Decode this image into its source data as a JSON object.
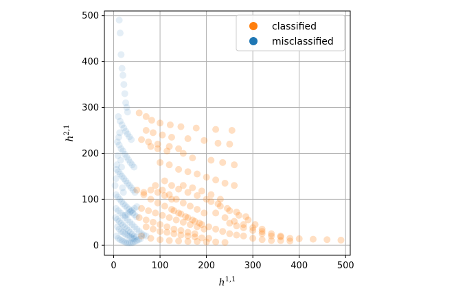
{
  "chart_data": {
    "type": "scatter",
    "title": "",
    "xlabel": "h",
    "xlabel_sup": "1,1",
    "ylabel": "h",
    "ylabel_sup": "2,1",
    "xlim": [
      -20,
      510
    ],
    "ylim": [
      -22,
      510
    ],
    "xticks": [
      0,
      100,
      200,
      300,
      400,
      500
    ],
    "yticks": [
      0,
      100,
      200,
      300,
      400,
      500
    ],
    "grid": true,
    "legend_position": "top-right",
    "series": [
      {
        "name": "classified",
        "color": "#ff7f0e",
        "opacity": 0.25,
        "points": [
          [
            55,
            288
          ],
          [
            70,
            280
          ],
          [
            82,
            272
          ],
          [
            100,
            266
          ],
          [
            122,
            262
          ],
          [
            145,
            258
          ],
          [
            178,
            255
          ],
          [
            220,
            252
          ],
          [
            255,
            250
          ],
          [
            70,
            250
          ],
          [
            85,
            245
          ],
          [
            105,
            240
          ],
          [
            125,
            235
          ],
          [
            160,
            232
          ],
          [
            195,
            228
          ],
          [
            225,
            222
          ],
          [
            250,
            220
          ],
          [
            80,
            215
          ],
          [
            95,
            210
          ],
          [
            115,
            205
          ],
          [
            150,
            200
          ],
          [
            170,
            190
          ],
          [
            210,
            185
          ],
          [
            235,
            180
          ],
          [
            260,
            175
          ],
          [
            60,
            230
          ],
          [
            75,
            225
          ],
          [
            95,
            220
          ],
          [
            120,
            215
          ],
          [
            140,
            210
          ],
          [
            100,
            180
          ],
          [
            120,
            175
          ],
          [
            140,
            165
          ],
          [
            160,
            160
          ],
          [
            180,
            155
          ],
          [
            200,
            148
          ],
          [
            220,
            142
          ],
          [
            240,
            135
          ],
          [
            260,
            130
          ],
          [
            110,
            140
          ],
          [
            125,
            130
          ],
          [
            140,
            122
          ],
          [
            160,
            115
          ],
          [
            180,
            108
          ],
          [
            200,
            100
          ],
          [
            225,
            90
          ],
          [
            245,
            80
          ],
          [
            265,
            72
          ],
          [
            285,
            62
          ],
          [
            210,
            95
          ],
          [
            230,
            85
          ],
          [
            250,
            75
          ],
          [
            270,
            65
          ],
          [
            290,
            55
          ],
          [
            305,
            45
          ],
          [
            320,
            35
          ],
          [
            220,
            70
          ],
          [
            240,
            60
          ],
          [
            260,
            52
          ],
          [
            280,
            45
          ],
          [
            300,
            38
          ],
          [
            320,
            30
          ],
          [
            340,
            25
          ],
          [
            360,
            20
          ],
          [
            250,
            48
          ],
          [
            265,
            42
          ],
          [
            280,
            38
          ],
          [
            300,
            32
          ],
          [
            320,
            25
          ],
          [
            340,
            20
          ],
          [
            360,
            18
          ],
          [
            380,
            15
          ],
          [
            400,
            14
          ],
          [
            430,
            13
          ],
          [
            460,
            12
          ],
          [
            490,
            11
          ],
          [
            60,
            80
          ],
          [
            75,
            75
          ],
          [
            90,
            70
          ],
          [
            105,
            65
          ],
          [
            120,
            60
          ],
          [
            135,
            55
          ],
          [
            150,
            50
          ],
          [
            165,
            45
          ],
          [
            180,
            40
          ],
          [
            195,
            35
          ],
          [
            70,
            40
          ],
          [
            85,
            35
          ],
          [
            100,
            30
          ],
          [
            115,
            28
          ],
          [
            130,
            25
          ],
          [
            145,
            22
          ],
          [
            160,
            20
          ],
          [
            175,
            18
          ],
          [
            190,
            16
          ],
          [
            205,
            15
          ],
          [
            60,
            20
          ],
          [
            80,
            15
          ],
          [
            100,
            12
          ],
          [
            120,
            10
          ],
          [
            140,
            9
          ],
          [
            160,
            8
          ],
          [
            180,
            8
          ],
          [
            200,
            7
          ],
          [
            220,
            7
          ],
          [
            240,
            6
          ],
          [
            65,
            110
          ],
          [
            80,
            100
          ],
          [
            95,
            92
          ],
          [
            110,
            85
          ],
          [
            125,
            78
          ],
          [
            140,
            70
          ],
          [
            155,
            62
          ],
          [
            170,
            55
          ],
          [
            185,
            48
          ],
          [
            90,
            130
          ],
          [
            105,
            120
          ],
          [
            120,
            110
          ],
          [
            135,
            100
          ],
          [
            150,
            92
          ],
          [
            165,
            85
          ],
          [
            180,
            78
          ],
          [
            195,
            70
          ],
          [
            55,
            60
          ],
          [
            70,
            55
          ],
          [
            85,
            50
          ],
          [
            100,
            45
          ],
          [
            115,
            40
          ],
          [
            130,
            35
          ],
          [
            145,
            32
          ],
          [
            160,
            28
          ],
          [
            175,
            25
          ],
          [
            50,
            120
          ],
          [
            65,
            115
          ],
          [
            80,
            120
          ],
          [
            95,
            115
          ],
          [
            110,
            108
          ],
          [
            125,
            100
          ],
          [
            150,
            130
          ],
          [
            170,
            125
          ],
          [
            190,
            118
          ],
          [
            210,
            110
          ],
          [
            230,
            100
          ],
          [
            130,
            75
          ],
          [
            145,
            68
          ],
          [
            160,
            60
          ],
          [
            175,
            52
          ],
          [
            190,
            45
          ],
          [
            205,
            40
          ],
          [
            220,
            35
          ],
          [
            235,
            30
          ],
          [
            250,
            25
          ],
          [
            265,
            22
          ],
          [
            280,
            20
          ],
          [
            300,
            15
          ],
          [
            320,
            12
          ],
          [
            340,
            10
          ],
          [
            360,
            10
          ],
          [
            380,
            9
          ]
        ]
      },
      {
        "name": "misclassified",
        "color": "#1f77b4",
        "opacity": 0.12,
        "points": [
          [
            12,
            490
          ],
          [
            14,
            462
          ],
          [
            16,
            415
          ],
          [
            18,
            385
          ],
          [
            20,
            370
          ],
          [
            22,
            350
          ],
          [
            24,
            330
          ],
          [
            26,
            310
          ],
          [
            28,
            300
          ],
          [
            30,
            290
          ],
          [
            10,
            280
          ],
          [
            14,
            270
          ],
          [
            18,
            262
          ],
          [
            22,
            255
          ],
          [
            26,
            248
          ],
          [
            30,
            242
          ],
          [
            34,
            236
          ],
          [
            38,
            230
          ],
          [
            8,
            225
          ],
          [
            12,
            218
          ],
          [
            16,
            210
          ],
          [
            20,
            205
          ],
          [
            24,
            198
          ],
          [
            28,
            192
          ],
          [
            32,
            186
          ],
          [
            36,
            180
          ],
          [
            40,
            175
          ],
          [
            44,
            170
          ],
          [
            6,
            165
          ],
          [
            10,
            160
          ],
          [
            14,
            155
          ],
          [
            18,
            150
          ],
          [
            22,
            145
          ],
          [
            26,
            140
          ],
          [
            30,
            135
          ],
          [
            34,
            130
          ],
          [
            38,
            125
          ],
          [
            42,
            120
          ],
          [
            46,
            115
          ],
          [
            5,
            110
          ],
          [
            9,
            105
          ],
          [
            13,
            100
          ],
          [
            17,
            95
          ],
          [
            21,
            90
          ],
          [
            25,
            86
          ],
          [
            29,
            82
          ],
          [
            33,
            78
          ],
          [
            37,
            74
          ],
          [
            41,
            70
          ],
          [
            45,
            66
          ],
          [
            49,
            62
          ],
          [
            4,
            60
          ],
          [
            8,
            56
          ],
          [
            12,
            52
          ],
          [
            16,
            48
          ],
          [
            20,
            44
          ],
          [
            24,
            40
          ],
          [
            28,
            36
          ],
          [
            32,
            32
          ],
          [
            36,
            28
          ],
          [
            40,
            24
          ],
          [
            44,
            20
          ],
          [
            48,
            18
          ],
          [
            6,
            20
          ],
          [
            10,
            15
          ],
          [
            14,
            12
          ],
          [
            18,
            10
          ],
          [
            22,
            8
          ],
          [
            26,
            6
          ],
          [
            30,
            5
          ],
          [
            34,
            5
          ],
          [
            38,
            5
          ],
          [
            42,
            6
          ],
          [
            46,
            8
          ],
          [
            50,
            10
          ],
          [
            54,
            12
          ],
          [
            58,
            14
          ],
          [
            3,
            130
          ],
          [
            5,
            145
          ],
          [
            7,
            175
          ],
          [
            9,
            195
          ],
          [
            11,
            235
          ],
          [
            13,
            245
          ],
          [
            15,
            185
          ],
          [
            17,
            170
          ],
          [
            19,
            125
          ],
          [
            21,
            115
          ],
          [
            25,
            60
          ],
          [
            30,
            55
          ],
          [
            35,
            50
          ],
          [
            40,
            45
          ],
          [
            45,
            40
          ],
          [
            50,
            35
          ],
          [
            55,
            30
          ],
          [
            60,
            25
          ],
          [
            65,
            22
          ],
          [
            70,
            20
          ],
          [
            5,
            80
          ],
          [
            10,
            75
          ],
          [
            15,
            70
          ],
          [
            20,
            65
          ],
          [
            25,
            65
          ],
          [
            30,
            68
          ],
          [
            35,
            72
          ],
          [
            40,
            76
          ],
          [
            45,
            80
          ],
          [
            50,
            84
          ],
          [
            8,
            40
          ],
          [
            12,
            35
          ],
          [
            16,
            30
          ],
          [
            20,
            28
          ],
          [
            24,
            25
          ],
          [
            28,
            22
          ],
          [
            32,
            20
          ],
          [
            36,
            18
          ],
          [
            40,
            15
          ],
          [
            44,
            14
          ]
        ]
      }
    ]
  }
}
